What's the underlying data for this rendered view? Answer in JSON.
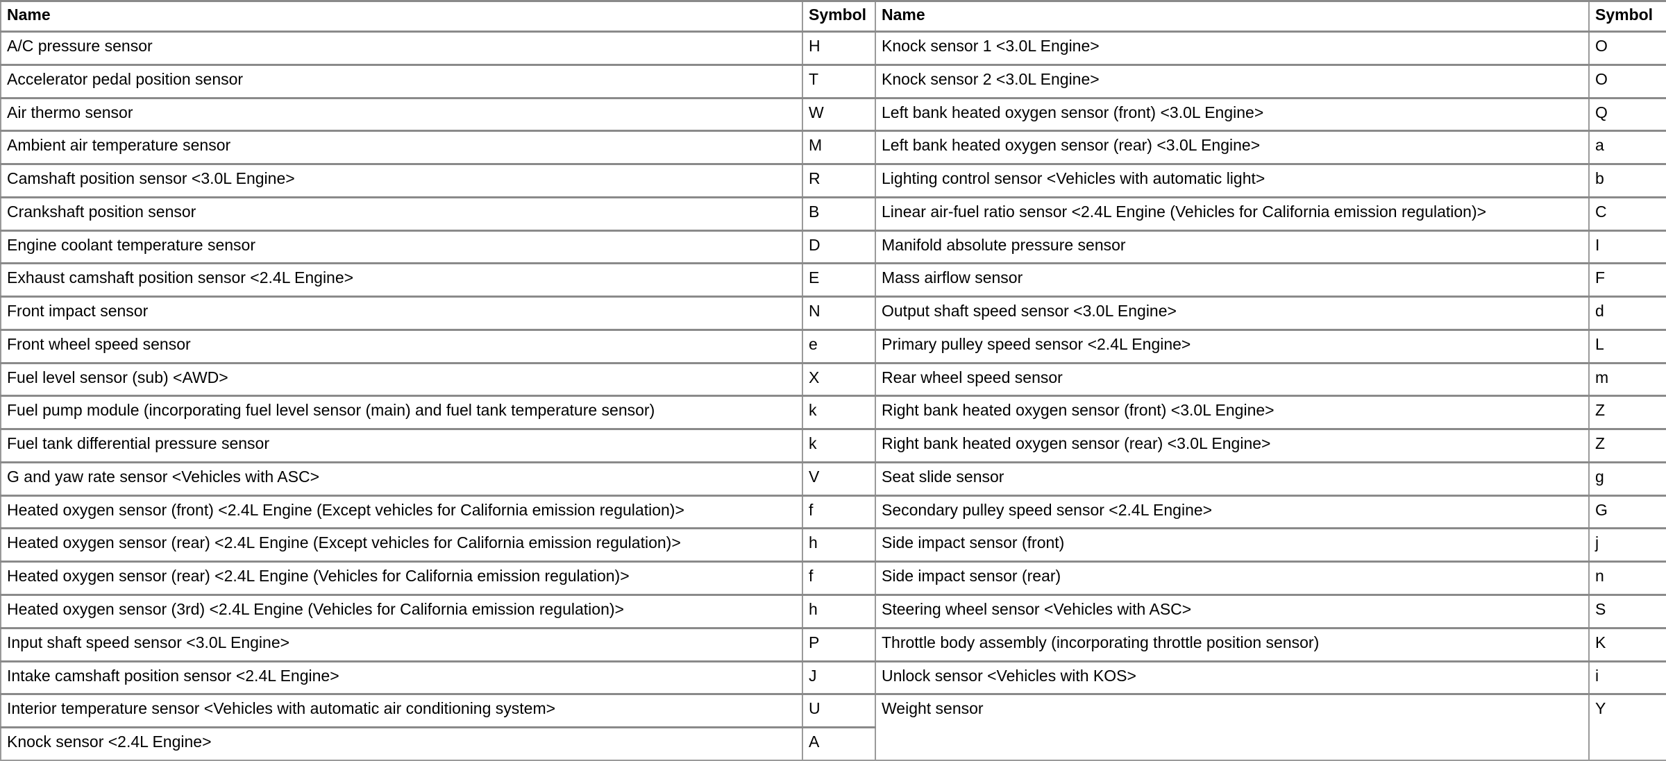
{
  "table": {
    "header": [
      "Name",
      "Symbol",
      "Name",
      "Symbol"
    ],
    "left": [
      [
        "A/C pressure sensor",
        "H"
      ],
      [
        "Accelerator pedal position sensor",
        "T"
      ],
      [
        "Air thermo sensor",
        "W"
      ],
      [
        "Ambient air temperature sensor",
        "M"
      ],
      [
        "Camshaft position sensor <3.0L Engine>",
        "R"
      ],
      [
        "Crankshaft position sensor",
        "B"
      ],
      [
        "Engine coolant temperature sensor",
        "D"
      ],
      [
        "Exhaust camshaft position sensor <2.4L Engine>",
        "E"
      ],
      [
        "Front impact sensor",
        "N"
      ],
      [
        "Front wheel speed sensor",
        "e"
      ],
      [
        "Fuel level sensor (sub) <AWD>",
        "X"
      ],
      [
        "Fuel pump module (incorporating fuel level sensor (main) and fuel tank temperature sensor)",
        "k"
      ],
      [
        "Fuel tank differential pressure sensor",
        "k"
      ],
      [
        "G and yaw rate sensor <Vehicles with ASC>",
        "V"
      ],
      [
        "Heated oxygen sensor (front) <2.4L Engine (Except vehicles for California emission regulation)>",
        "f"
      ],
      [
        "Heated oxygen sensor (rear) <2.4L Engine (Except vehicles for California emission regulation)>",
        "h"
      ],
      [
        "Heated oxygen sensor (rear) <2.4L Engine (Vehicles for California emission regulation)>",
        "f"
      ],
      [
        "Heated oxygen sensor (3rd) <2.4L Engine (Vehicles for California emission regulation)>",
        "h"
      ],
      [
        "Input shaft speed sensor <3.0L Engine>",
        "P"
      ],
      [
        "Intake camshaft position sensor <2.4L Engine>",
        "J"
      ],
      [
        "Interior temperature sensor <Vehicles with automatic air conditioning system>",
        "U"
      ],
      [
        "Knock sensor <2.4L Engine>",
        "A"
      ]
    ],
    "right": [
      [
        "Knock sensor 1 <3.0L Engine>",
        "O"
      ],
      [
        "Knock sensor 2 <3.0L Engine>",
        "O"
      ],
      [
        "Left bank heated oxygen sensor (front) <3.0L Engine>",
        "Q"
      ],
      [
        "Left bank heated oxygen sensor (rear) <3.0L Engine>",
        "a"
      ],
      [
        "Lighting control sensor <Vehicles with automatic light>",
        "b"
      ],
      [
        "Linear air-fuel ratio sensor <2.4L Engine (Vehicles for California emission regulation)>",
        "C"
      ],
      [
        "Manifold absolute pressure sensor",
        "I"
      ],
      [
        "Mass airflow sensor",
        "F"
      ],
      [
        "Output shaft speed sensor <3.0L Engine>",
        "d"
      ],
      [
        "Primary pulley speed sensor <2.4L Engine>",
        "L"
      ],
      [
        "Rear wheel speed sensor",
        "m"
      ],
      [
        "Right bank heated oxygen sensor (front) <3.0L Engine>",
        "Z"
      ],
      [
        "Right bank heated oxygen sensor (rear) <3.0L Engine>",
        "Z"
      ],
      [
        "Seat slide sensor",
        "g"
      ],
      [
        "Secondary pulley speed sensor <2.4L Engine>",
        "G"
      ],
      [
        "Side impact sensor (front)",
        "j"
      ],
      [
        "Side impact sensor (rear)",
        "n"
      ],
      [
        "Steering wheel sensor <Vehicles with ASC>",
        "S"
      ],
      [
        "Throttle body assembly (incorporating throttle position sensor)",
        "K"
      ],
      [
        "Unlock sensor <Vehicles with KOS>",
        "i"
      ],
      [
        "Weight sensor",
        "Y"
      ]
    ]
  }
}
